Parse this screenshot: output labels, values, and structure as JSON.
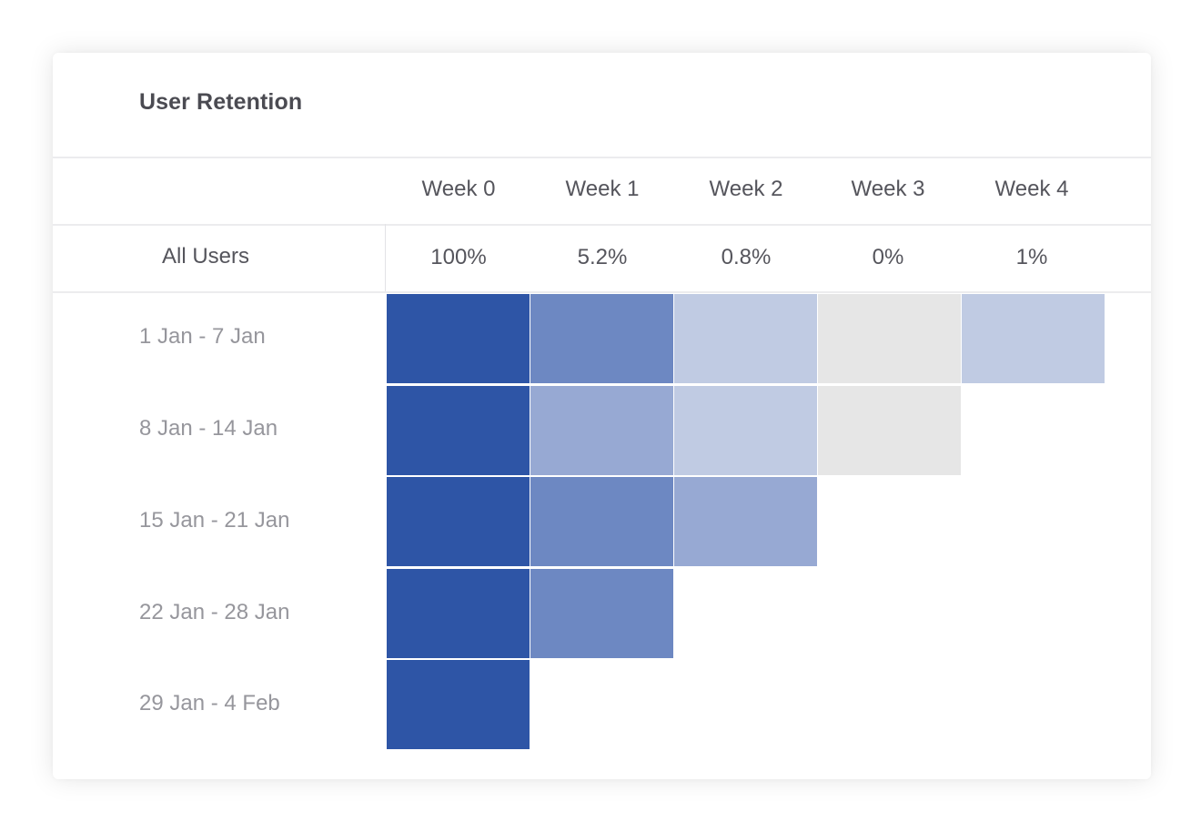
{
  "chart_data": {
    "type": "heatmap",
    "title": "User Retention",
    "columns": [
      "Week 0",
      "Week 1",
      "Week 2",
      "Week 3",
      "Week 4"
    ],
    "summary": {
      "label": "All Users",
      "values": [
        "100%",
        "5.2%",
        "0.8%",
        "0%",
        "1%"
      ]
    },
    "rows": [
      {
        "label": "1 Jan - 7 Jan",
        "levels": [
          4,
          3,
          1,
          0,
          1
        ]
      },
      {
        "label": "8 Jan - 14 Jan",
        "levels": [
          4,
          2,
          1,
          0
        ]
      },
      {
        "label": "15 Jan - 21 Jan",
        "levels": [
          4,
          3,
          2
        ]
      },
      {
        "label": "22 Jan - 28 Jan",
        "levels": [
          4,
          3
        ]
      },
      {
        "label": "29 Jan - 4 Feb",
        "levels": [
          4
        ]
      }
    ],
    "level_colors": [
      "#e6e6e6",
      "#c0cbe3",
      "#97a9d3",
      "#6d88c2",
      "#2e55a6"
    ]
  }
}
